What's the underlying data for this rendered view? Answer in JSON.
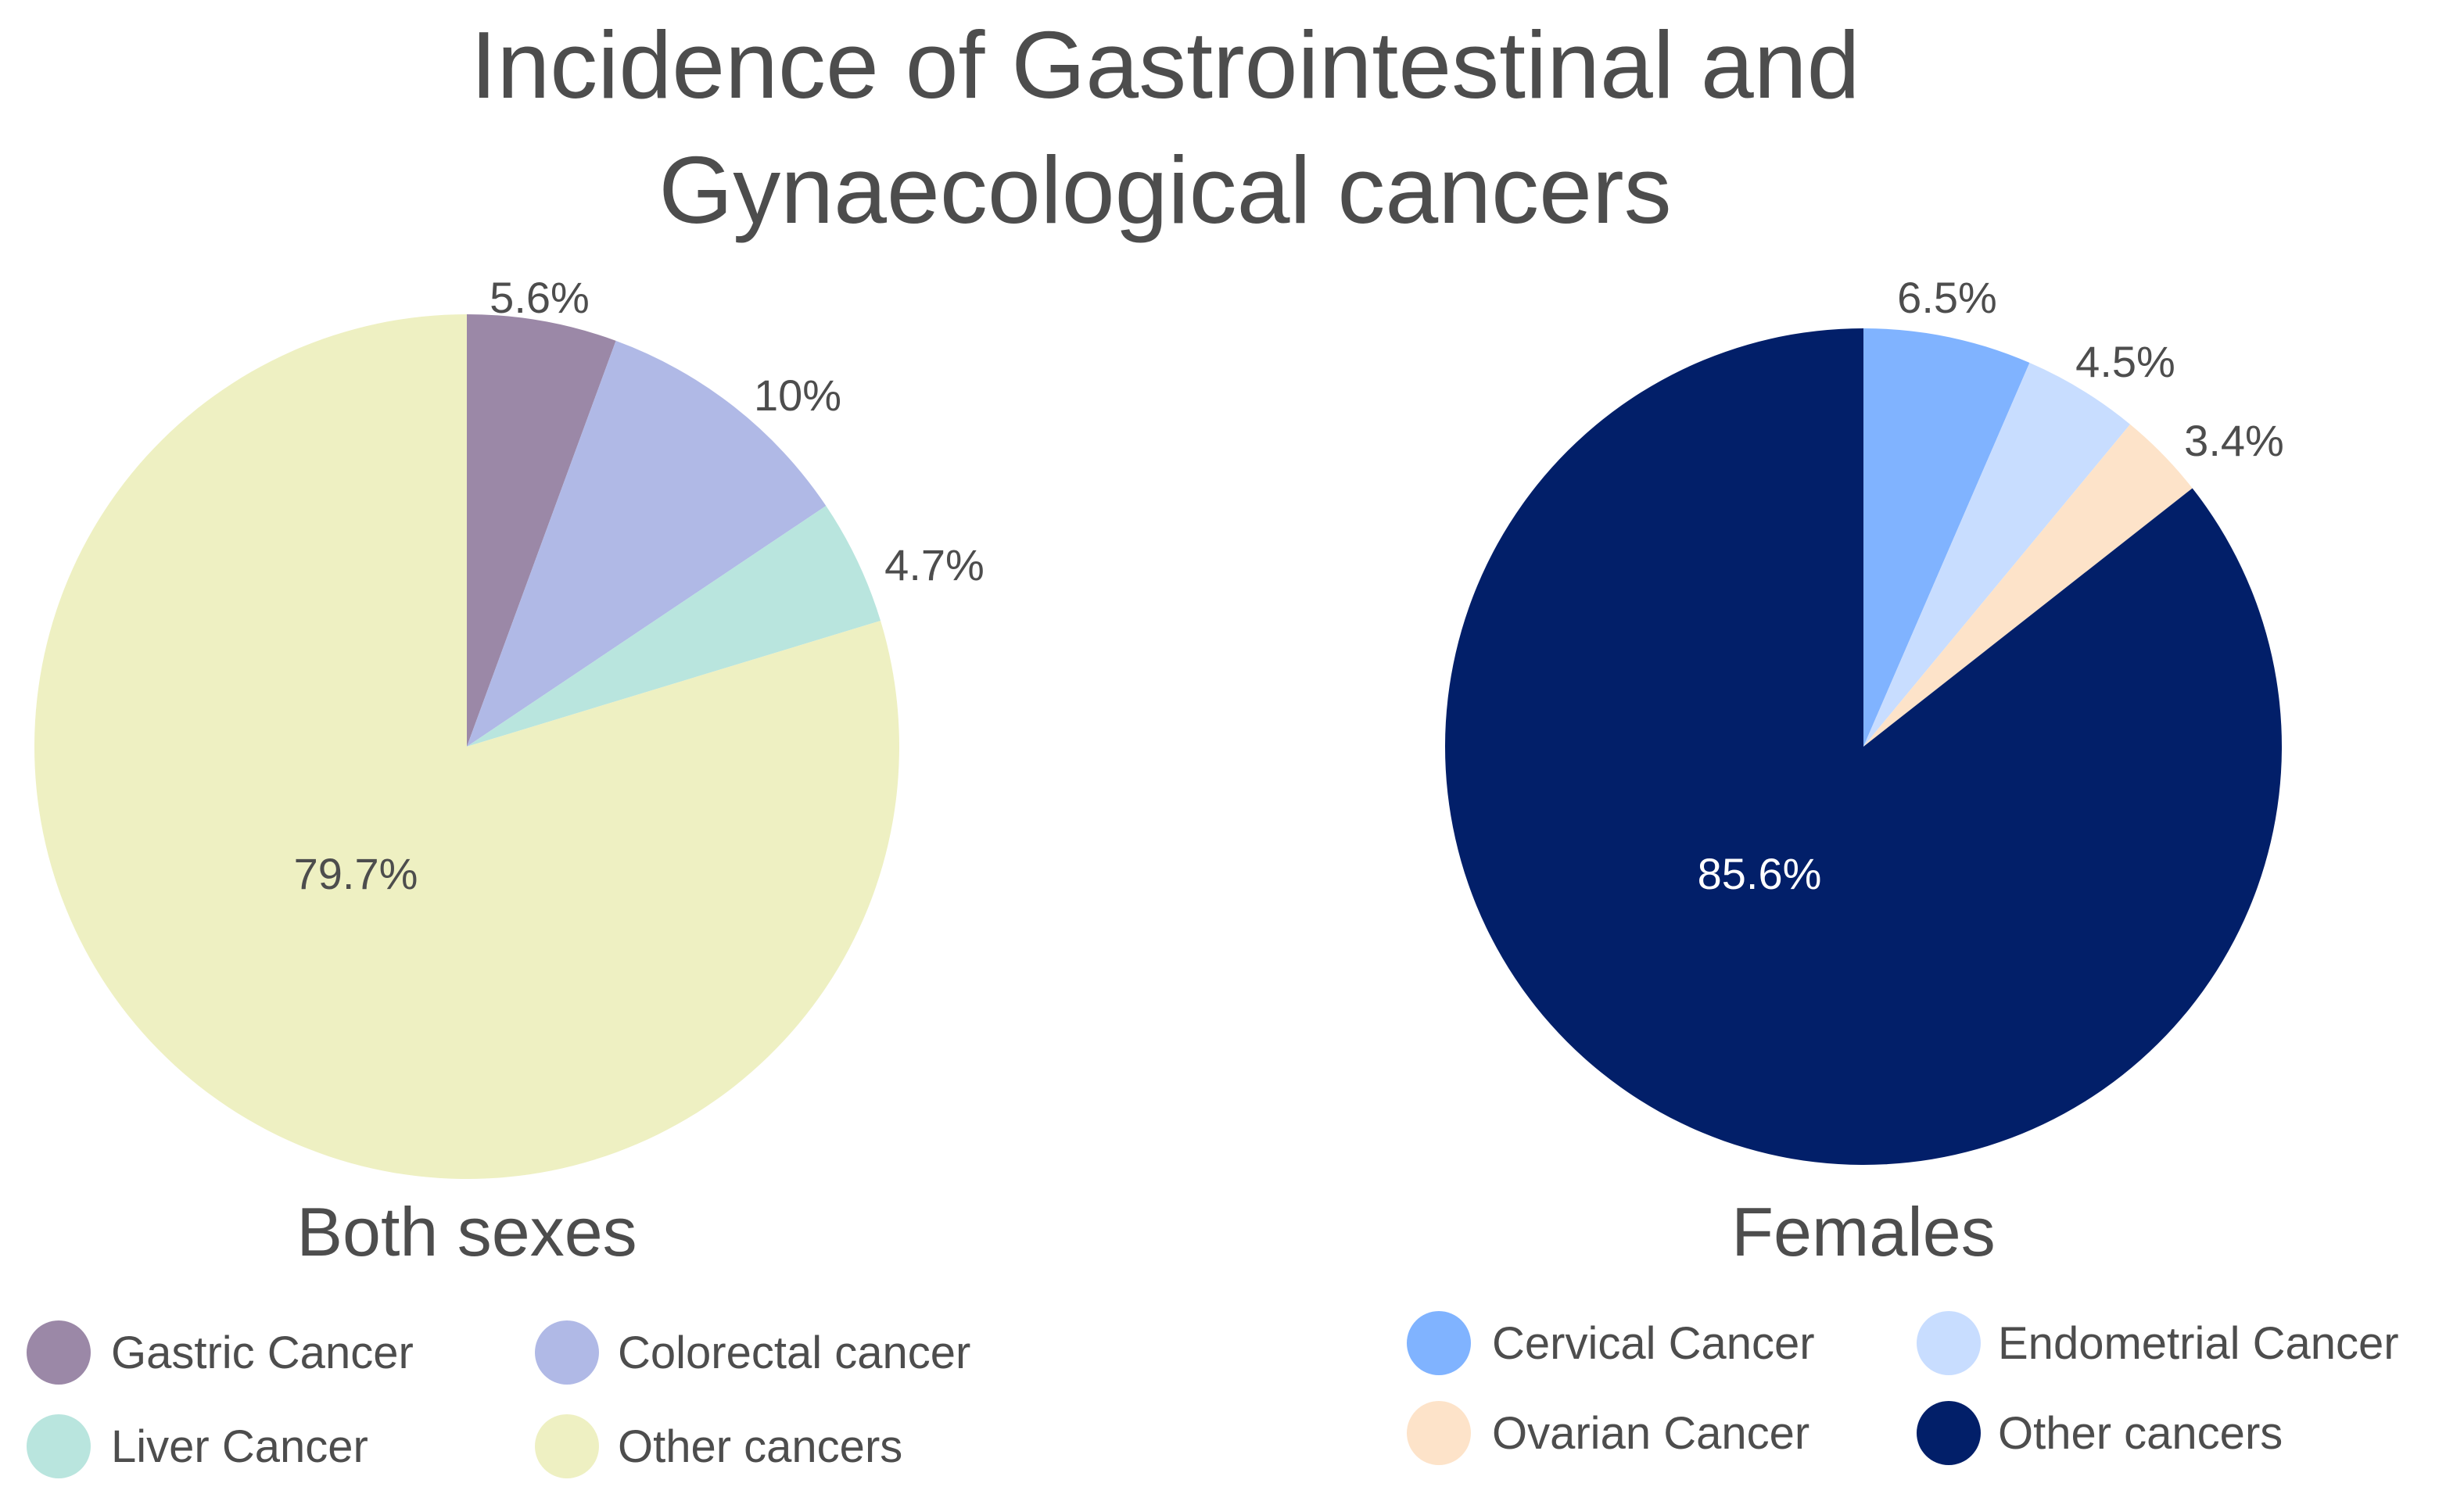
{
  "title_line1": "Incidence of Gastrointestinal and",
  "title_line2": "Gynaecological cancers",
  "chart_data": [
    {
      "type": "pie",
      "subtitle": "Both sexes",
      "start_angle_deg": 0,
      "direction": "clockwise",
      "slices": [
        {
          "label": "Gastric Cancer",
          "value": 5.6,
          "value_label": "5.6%",
          "color": "#9b88a7"
        },
        {
          "label": "Colorectal cancer",
          "value": 10,
          "value_label": "10%",
          "color": "#b0b9e6"
        },
        {
          "label": "Liver Cancer",
          "value": 4.7,
          "value_label": "4.7%",
          "color": "#b9e5de"
        },
        {
          "label": "Other cancers",
          "value": 79.7,
          "value_label": "79.7%",
          "color": "#eef0c2"
        }
      ],
      "legend": [
        "Gastric Cancer",
        "Colorectal cancer",
        "Liver Cancer",
        "Other cancers"
      ]
    },
    {
      "type": "pie",
      "subtitle": "Females",
      "start_angle_deg": 0,
      "direction": "clockwise",
      "slices": [
        {
          "label": "Cervical Cancer",
          "value": 6.5,
          "value_label": "6.5%",
          "color": "#80b3ff"
        },
        {
          "label": "Endometrial Cancer",
          "value": 4.5,
          "value_label": "4.5%",
          "color": "#c8ddff"
        },
        {
          "label": "Ovarian Cancer",
          "value": 3.4,
          "value_label": "3.4%",
          "color": "#fde3c9"
        },
        {
          "label": "Other cancers",
          "value": 85.6,
          "value_label": "85.6%",
          "color": "#021f69"
        }
      ],
      "legend": [
        "Cervical Cancer",
        "Endometrial Cancer",
        "Ovarian Cancer",
        "Other cancers"
      ]
    }
  ],
  "colors": {
    "text": "#4d4d4d",
    "inner_label_light": "#ffffff"
  }
}
